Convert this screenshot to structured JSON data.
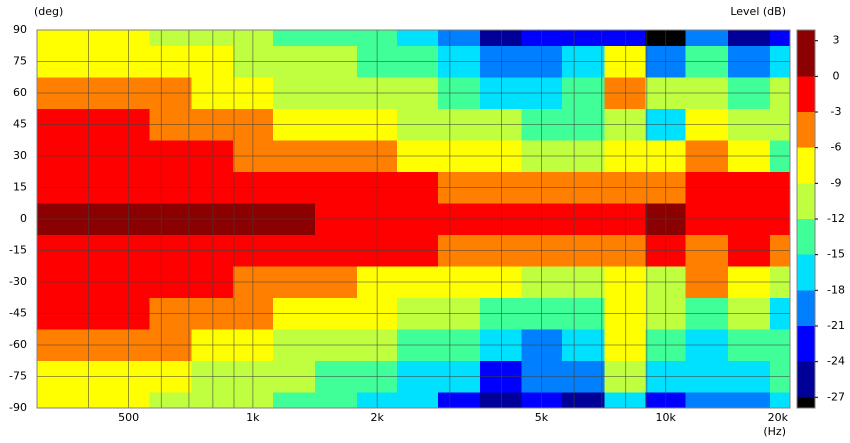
{
  "chart_data": {
    "type": "heatmap",
    "y_label": "(deg)",
    "x_label": "(Hz)",
    "colorbar_label": "Level  (dB)",
    "x": [
      315,
      400,
      500,
      630,
      800,
      1000,
      1250,
      1600,
      2000,
      2500,
      3150,
      4000,
      5000,
      6300,
      8000,
      10000,
      12500,
      16000,
      20000
    ],
    "y": [
      90,
      75,
      60,
      45,
      30,
      15,
      0,
      -15,
      -30,
      -45,
      -60,
      -75,
      -90
    ],
    "z": [
      [
        -8,
        -8,
        -8,
        -9.5,
        -10.5,
        -11,
        -12.5,
        -13,
        -14,
        -15.5,
        -20,
        -25,
        -22,
        -24,
        -22,
        -28,
        -20,
        -25,
        -23
      ],
      [
        -7,
        -7,
        -7,
        -8,
        -8.5,
        -10,
        -10.5,
        -11.5,
        -12.5,
        -13.5,
        -16,
        -19,
        -20,
        -18,
        -8,
        -20,
        -14,
        -20,
        -16
      ],
      [
        -4.5,
        -4.5,
        -4.5,
        -5,
        -6.5,
        -8,
        -9.2,
        -10,
        -11,
        -12,
        -13,
        -15.5,
        -17,
        -14,
        -4,
        -12,
        -10,
        -14,
        -12
      ],
      [
        -2.8,
        -2.8,
        -2.8,
        -3.2,
        -4,
        -5,
        -6.5,
        -7.5,
        -8.5,
        -9.5,
        -10.5,
        -12,
        -13,
        -14,
        -12,
        -16,
        -9,
        -10,
        -12
      ],
      [
        -1.5,
        -1.5,
        -1.5,
        -1.8,
        -2.5,
        -3.5,
        -4,
        -5,
        -6,
        -6.5,
        -7.5,
        -8,
        -9.5,
        -10,
        -8,
        -9,
        -6,
        -7,
        -13
      ],
      [
        -1,
        -1,
        -1,
        -1,
        -1,
        -1.2,
        -1.5,
        -2,
        -2.5,
        -3,
        -3.2,
        -3.5,
        -4,
        -5,
        -4,
        -3.5,
        -3,
        -2.5,
        -3
      ],
      [
        1,
        1,
        1,
        1,
        0.8,
        0.6,
        0.3,
        -0.5,
        -0.5,
        -1,
        -1,
        -1,
        -1.2,
        -1.5,
        -1.5,
        1,
        -1,
        -1,
        -2
      ],
      [
        -0.5,
        -0.5,
        -0.5,
        -0.5,
        -1,
        -1.2,
        -1.5,
        -2,
        -2.5,
        -3,
        -3.5,
        -4,
        -4.5,
        -5,
        -5,
        -3,
        -4,
        -3,
        -4
      ],
      [
        -1.5,
        -1.5,
        -1.5,
        -1.5,
        -2.5,
        -3.2,
        -4,
        -5,
        -6.5,
        -7,
        -7.5,
        -8.5,
        -9.5,
        -10.5,
        -8,
        -10,
        -5,
        -9,
        -10
      ],
      [
        -2.5,
        -2.5,
        -2.5,
        -3.2,
        -4.5,
        -6,
        -7,
        -8,
        -9,
        -10,
        -11,
        -12.5,
        -15,
        -14,
        -9,
        -12,
        -13,
        -12,
        -18
      ],
      [
        -4,
        -4,
        -4,
        -5,
        -7,
        -8.5,
        -9.5,
        -10.5,
        -11.5,
        -12.5,
        -14,
        -17,
        -19,
        -16,
        -7,
        -14,
        -16,
        -13,
        -14
      ],
      [
        -6.5,
        -6.5,
        -6.5,
        -7.5,
        -9.5,
        -10.5,
        -11,
        -12.5,
        -13.5,
        -15.5,
        -17,
        -22,
        -21,
        -20,
        -10,
        -18,
        -18,
        -17,
        -15
      ],
      [
        -8,
        -8,
        -8,
        -9.5,
        -10.5,
        -11.5,
        -12.5,
        -14,
        -15.5,
        -17,
        -22,
        -25,
        -23,
        -26,
        -18,
        -24,
        -20,
        -20,
        -16
      ]
    ],
    "xlim": [
      300,
      20000
    ],
    "log_x": true,
    "xticks": [
      {
        "value": 500,
        "label": "500"
      },
      {
        "value": 1000,
        "label": "1k"
      },
      {
        "value": 2000,
        "label": "2k"
      },
      {
        "value": 5000,
        "label": "5k"
      },
      {
        "value": 10000,
        "label": "10k"
      },
      {
        "value": 20000,
        "label": "20k"
      }
    ],
    "xminor_ticks": [
      400,
      600,
      700,
      800,
      900,
      3000,
      4000,
      6000,
      7000,
      8000,
      9000
    ],
    "ylim": [
      -90,
      90
    ],
    "yticks": [
      90,
      75,
      60,
      45,
      30,
      15,
      0,
      -15,
      -30,
      -45,
      -60,
      -75,
      -90
    ],
    "zlim": [
      -27.9,
      3.9
    ],
    "zticks": [
      3,
      0,
      -3,
      -6,
      -9,
      -12,
      -15,
      -18,
      -21,
      -24,
      -27
    ],
    "colors": [
      "#8b0000",
      "#ff0000",
      "#ff8000",
      "#ffff00",
      "#c0ff40",
      "#40ff98",
      "#00e0ff",
      "#0080ff",
      "#0000ff",
      "#000098",
      "#000000"
    ],
    "grid": true
  }
}
